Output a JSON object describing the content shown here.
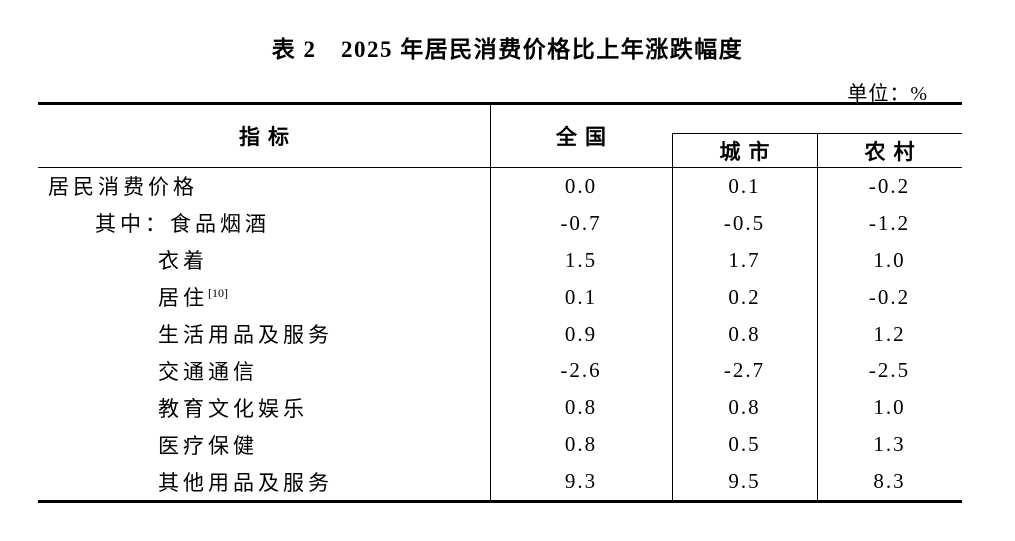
{
  "title": "表 2　2025 年居民消费价格比上年涨跌幅度",
  "unit_label": "单位：%",
  "colors": {
    "text": "#000000",
    "background": "#ffffff",
    "rule": "#000000"
  },
  "table": {
    "headers": {
      "indicator": "指标",
      "national": "全国",
      "urban": "城市",
      "rural": "农村"
    },
    "rows": [
      {
        "label": "居民消费价格",
        "national": "0.0",
        "urban": "0.1",
        "rural": "-0.2"
      },
      {
        "label": "其中：食品烟酒",
        "national": "-0.7",
        "urban": "-0.5",
        "rural": "-1.2"
      },
      {
        "label": "衣着",
        "national": "1.5",
        "urban": "1.7",
        "rural": "1.0"
      },
      {
        "label": "居住",
        "sup": "[10]",
        "national": "0.1",
        "urban": "0.2",
        "rural": "-0.2"
      },
      {
        "label": "生活用品及服务",
        "national": "0.9",
        "urban": "0.8",
        "rural": "1.2"
      },
      {
        "label": "交通通信",
        "national": "-2.6",
        "urban": "-2.7",
        "rural": "-2.5"
      },
      {
        "label": "教育文化娱乐",
        "national": "0.8",
        "urban": "0.8",
        "rural": "1.0"
      },
      {
        "label": "医疗保健",
        "national": "0.8",
        "urban": "0.5",
        "rural": "1.3"
      },
      {
        "label": "其他用品及服务",
        "national": "9.3",
        "urban": "9.5",
        "rural": "8.3"
      }
    ]
  },
  "chart_data": {
    "type": "table",
    "title": "表 2　2025 年居民消费价格比上年涨跌幅度",
    "unit": "%",
    "columns": [
      "指标",
      "全国",
      "城市",
      "农村"
    ],
    "rows": [
      [
        "居民消费价格",
        0.0,
        0.1,
        -0.2
      ],
      [
        "其中：食品烟酒",
        -0.7,
        -0.5,
        -1.2
      ],
      [
        "衣着",
        1.5,
        1.7,
        1.0
      ],
      [
        "居住[10]",
        0.1,
        0.2,
        -0.2
      ],
      [
        "生活用品及服务",
        0.9,
        0.8,
        1.2
      ],
      [
        "交通通信",
        -2.6,
        -2.7,
        -2.5
      ],
      [
        "教育文化娱乐",
        0.8,
        0.8,
        1.0
      ],
      [
        "医疗保健",
        0.8,
        0.5,
        1.3
      ],
      [
        "其他用品及服务",
        9.3,
        9.5,
        8.3
      ]
    ]
  }
}
